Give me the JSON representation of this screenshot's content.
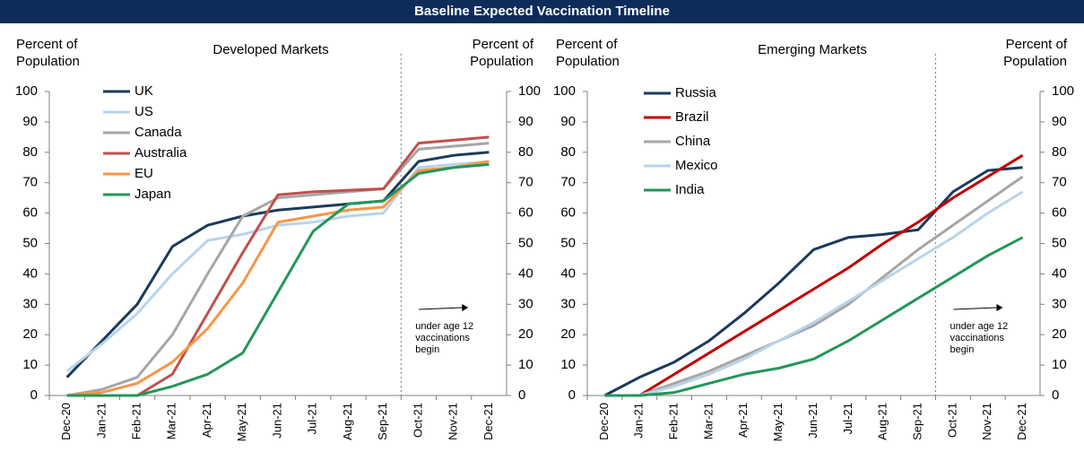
{
  "title": "Baseline Expected Vaccination Timeline",
  "chart_data": [
    {
      "type": "line",
      "title": "Developed Markets",
      "ylabel": "Percent of Population",
      "y2label": "Percent of Population",
      "categories": [
        "Dec-20",
        "Jan-21",
        "Feb-21",
        "Mar-21",
        "Apr-21",
        "May-21",
        "Jun-21",
        "Jul-21",
        "Aug-21",
        "Sep-21",
        "Oct-21",
        "Nov-21",
        "Dec-21"
      ],
      "series": [
        {
          "name": "UK",
          "color": "#1a3a5c",
          "values": [
            6,
            18,
            30,
            49,
            56,
            59,
            61,
            62,
            63,
            64,
            77,
            79,
            80
          ]
        },
        {
          "name": "US",
          "color": "#b8d4ea",
          "values": [
            8,
            17,
            27,
            40,
            51,
            53,
            56,
            57,
            59,
            60,
            75,
            76,
            77
          ]
        },
        {
          "name": "Canada",
          "color": "#a6a6a6",
          "values": [
            0,
            2,
            6,
            20,
            40,
            59,
            65,
            66,
            67,
            68,
            81,
            82,
            83
          ]
        },
        {
          "name": "Australia",
          "color": "#c0504d",
          "values": [
            0,
            0,
            0,
            7,
            27,
            47,
            66,
            67,
            67.5,
            68,
            83,
            84,
            85
          ]
        },
        {
          "name": "EU",
          "color": "#f79646",
          "values": [
            0,
            1,
            4,
            11,
            22,
            37,
            57,
            59,
            61,
            62,
            74,
            75,
            77
          ]
        },
        {
          "name": "Japan",
          "color": "#23965a",
          "values": [
            0,
            0,
            0,
            3,
            7,
            14,
            34,
            54,
            63,
            64,
            73,
            75,
            76
          ]
        }
      ],
      "ylim": [
        0,
        100
      ],
      "yticks": [
        0,
        10,
        20,
        30,
        40,
        50,
        60,
        70,
        80,
        90,
        100
      ],
      "y2lim": [
        0,
        100
      ],
      "y2ticks": [
        0,
        10,
        20,
        30,
        40,
        50,
        60,
        70,
        80,
        90,
        100
      ],
      "annotation": "under age 12 vaccinations begin",
      "legend": "upper left"
    },
    {
      "type": "line",
      "title": "Emerging Markets",
      "ylabel": "Percent of Population",
      "y2label": "Percent of Population",
      "categories": [
        "Dec-20",
        "Jan-21",
        "Feb-21",
        "Mar-21",
        "Apr-21",
        "May-21",
        "Jun-21",
        "Jul-21",
        "Aug-21",
        "Sep-21",
        "Oct-21",
        "Nov-21",
        "Dec-21"
      ],
      "series": [
        {
          "name": "Russia",
          "color": "#1a3a5c",
          "values": [
            0,
            6,
            11,
            18,
            27,
            37,
            48,
            52,
            53,
            54.5,
            67,
            74,
            75
          ]
        },
        {
          "name": "Brazil",
          "color": "#c00000",
          "values": [
            0,
            0,
            7,
            14,
            21,
            28,
            35,
            42,
            50,
            57,
            65,
            72,
            79
          ]
        },
        {
          "name": "China",
          "color": "#a6a6a6",
          "values": [
            0,
            0,
            4,
            8,
            13,
            18,
            23,
            30,
            39,
            48,
            56,
            64,
            72
          ]
        },
        {
          "name": "Mexico",
          "color": "#b8d4ea",
          "values": [
            0,
            0,
            3,
            7,
            12,
            18,
            24,
            31,
            38,
            45,
            52,
            60,
            67
          ]
        },
        {
          "name": "India",
          "color": "#23965a",
          "values": [
            0,
            0,
            1,
            4,
            7,
            9,
            12,
            18,
            25,
            32,
            39,
            46,
            52
          ]
        }
      ],
      "ylim": [
        0,
        100
      ],
      "yticks": [
        0,
        10,
        20,
        30,
        40,
        50,
        60,
        70,
        80,
        90,
        100
      ],
      "y2lim": [
        0,
        100
      ],
      "y2ticks": [
        0,
        10,
        20,
        30,
        40,
        50,
        60,
        70,
        80,
        90,
        100
      ],
      "annotation": "under age 12 vaccinations begin",
      "legend": "upper left"
    }
  ]
}
